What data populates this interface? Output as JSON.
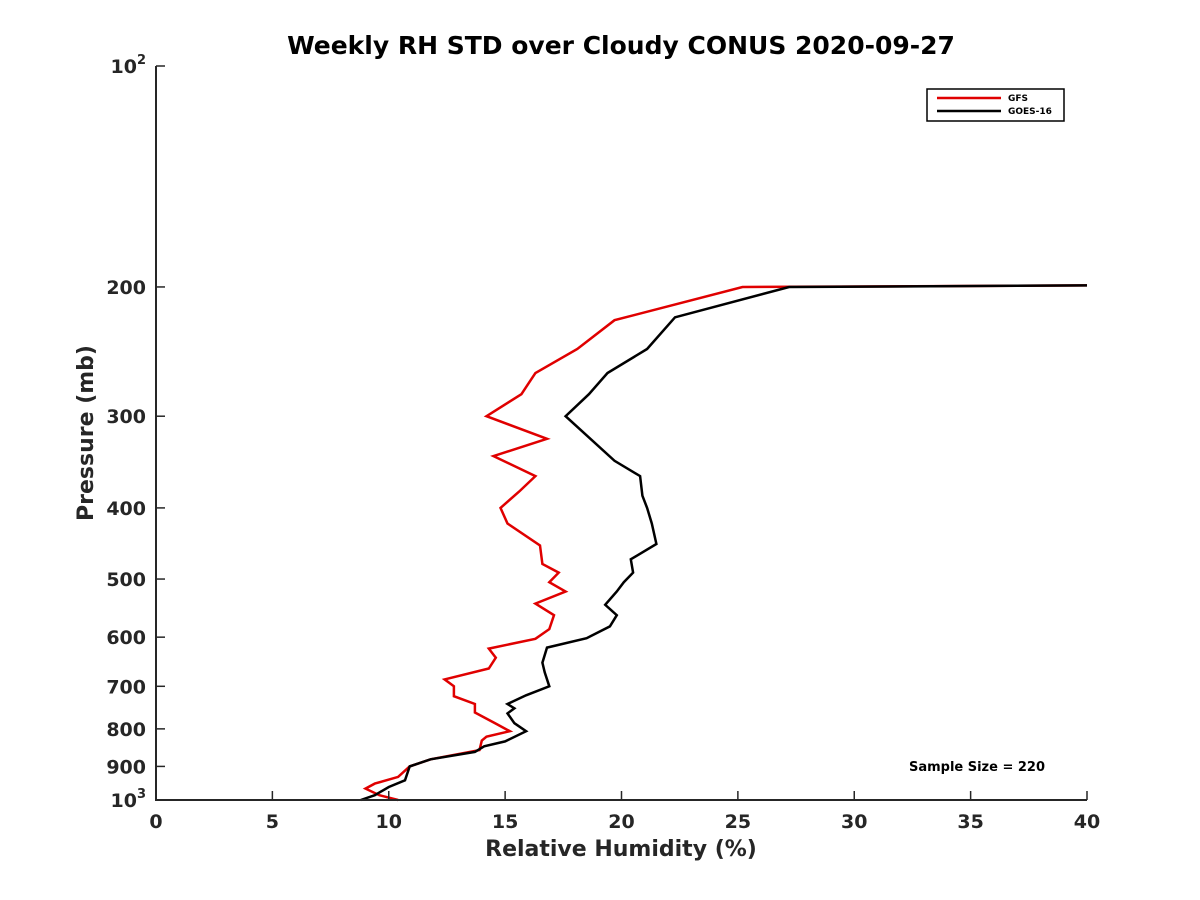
{
  "chart_data": {
    "type": "line",
    "title": "Weekly RH STD over Cloudy CONUS 2020-09-27",
    "xlabel": "Relative Humidity (%)",
    "ylabel": "Pressure (mb)",
    "xlim": [
      0,
      40
    ],
    "ylim": [
      1000,
      100
    ],
    "yscale": "log",
    "grid": false,
    "legend_position": "top-right",
    "x_ticks": [
      "0",
      "5",
      "10",
      "15",
      "20",
      "25",
      "30",
      "35",
      "40"
    ],
    "y_ticks": [
      {
        "value": 100,
        "base": "10",
        "exp": "2"
      },
      {
        "value": 200,
        "label": "200"
      },
      {
        "value": 300,
        "label": "300"
      },
      {
        "value": 400,
        "label": "400"
      },
      {
        "value": 500,
        "label": "500"
      },
      {
        "value": 600,
        "label": "600"
      },
      {
        "value": 700,
        "label": "700"
      },
      {
        "value": 800,
        "label": "800"
      },
      {
        "value": 900,
        "label": "900"
      },
      {
        "value": 1000,
        "base": "10",
        "exp": "3"
      }
    ],
    "annotation": "Sample Size = 220",
    "series": [
      {
        "name": "GFS",
        "color": "#e00000",
        "points": [
          [
            10.4,
            1000
          ],
          [
            9.6,
            985
          ],
          [
            9.0,
            965
          ],
          [
            9.4,
            950
          ],
          [
            10.4,
            930
          ],
          [
            10.9,
            900
          ],
          [
            11.8,
            880
          ],
          [
            13.9,
            855
          ],
          [
            14.0,
            830
          ],
          [
            14.2,
            820
          ],
          [
            15.2,
            806
          ],
          [
            14.6,
            787
          ],
          [
            13.7,
            760
          ],
          [
            13.7,
            740
          ],
          [
            12.8,
            722
          ],
          [
            12.8,
            700
          ],
          [
            12.4,
            685
          ],
          [
            14.3,
            662
          ],
          [
            14.6,
            640
          ],
          [
            14.3,
            622
          ],
          [
            16.3,
            603
          ],
          [
            16.9,
            585
          ],
          [
            17.1,
            560
          ],
          [
            16.3,
            540
          ],
          [
            17.6,
            520
          ],
          [
            16.9,
            505
          ],
          [
            17.3,
            490
          ],
          [
            16.6,
            477
          ],
          [
            16.5,
            450
          ],
          [
            15.1,
            420
          ],
          [
            14.8,
            400
          ],
          [
            15.6,
            380
          ],
          [
            16.3,
            362
          ],
          [
            14.5,
            340
          ],
          [
            16.8,
            322
          ],
          [
            14.2,
            300
          ],
          [
            15.7,
            280
          ],
          [
            16.3,
            262
          ],
          [
            18.1,
            243
          ],
          [
            19.7,
            222
          ],
          [
            25.2,
            200
          ],
          [
            40,
            199
          ]
        ]
      },
      {
        "name": "GOES-16",
        "color": "#000000",
        "points": [
          [
            8.8,
            1000
          ],
          [
            9.4,
            985
          ],
          [
            10.0,
            960
          ],
          [
            10.7,
            940
          ],
          [
            10.9,
            900
          ],
          [
            11.8,
            880
          ],
          [
            13.7,
            860
          ],
          [
            14.1,
            845
          ],
          [
            15.0,
            832
          ],
          [
            15.9,
            806
          ],
          [
            15.4,
            786
          ],
          [
            15.1,
            762
          ],
          [
            15.4,
            750
          ],
          [
            15.1,
            740
          ],
          [
            15.9,
            720
          ],
          [
            16.9,
            700
          ],
          [
            16.7,
            670
          ],
          [
            16.6,
            650
          ],
          [
            16.8,
            620
          ],
          [
            18.5,
            602
          ],
          [
            19.5,
            580
          ],
          [
            19.8,
            560
          ],
          [
            19.3,
            542
          ],
          [
            19.8,
            520
          ],
          [
            20.1,
            505
          ],
          [
            20.5,
            490
          ],
          [
            20.4,
            470
          ],
          [
            21.5,
            448
          ],
          [
            21.3,
            420
          ],
          [
            21.1,
            400
          ],
          [
            20.9,
            385
          ],
          [
            20.8,
            362
          ],
          [
            19.7,
            345
          ],
          [
            17.6,
            300
          ],
          [
            18.6,
            280
          ],
          [
            19.4,
            262
          ],
          [
            21.1,
            243
          ],
          [
            22.3,
            220
          ],
          [
            27.2,
            200
          ],
          [
            40,
            199
          ]
        ]
      }
    ]
  }
}
